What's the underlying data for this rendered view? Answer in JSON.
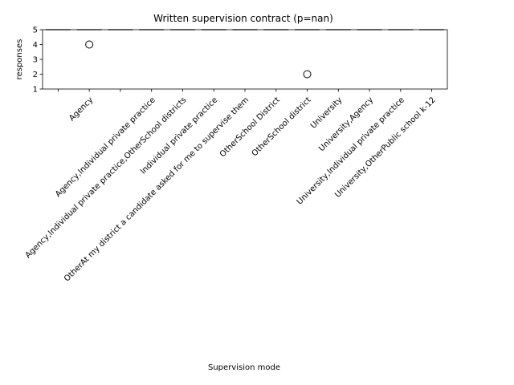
{
  "chart_data": {
    "type": "box",
    "title": "Written supervision contract (p=nan)",
    "xlabel": "Supervision mode",
    "ylabel": "responses",
    "ylim": [
      1,
      5
    ],
    "yticks": [
      "1",
      "2",
      "3",
      "4",
      "5"
    ],
    "categories": [
      "",
      "Agency",
      "",
      "Agency,Individual private practice",
      "Agency,Individual private practice,OtherSchool districts",
      "Individual private practice",
      "OtherAt my district a candidate asked for me to supervise them",
      "OtherSchool District",
      "OtherSchool district",
      "University",
      "University,Agency",
      "University,Individual private practice",
      "University,OtherPublic school k-12"
    ],
    "values": [
      5,
      5,
      5,
      5,
      5,
      5,
      5,
      5,
      5,
      5,
      5,
      5,
      5
    ],
    "outliers": [
      {
        "category": "Agency",
        "value": 4
      },
      {
        "category": "OtherSchool district",
        "value": 2
      }
    ],
    "grid": false,
    "legend": "none"
  }
}
